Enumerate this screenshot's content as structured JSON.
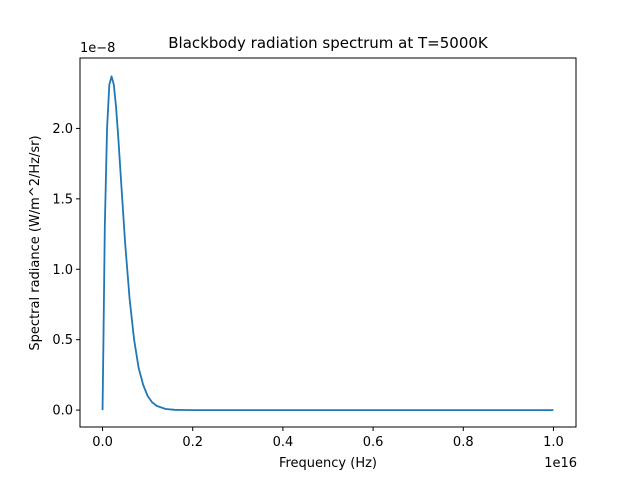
{
  "chart_data": {
    "type": "line",
    "title": "Blackbody radiation spectrum at T=5000K",
    "xlabel": "Frequency (Hz)",
    "ylabel": "Spectral radiance (W/m^2/Hz/sr)",
    "x_offset_label": "1e16",
    "y_offset_label": "1e−8",
    "xlim": [
      -0.05,
      1.05
    ],
    "ylim": [
      -0.12,
      2.5
    ],
    "x_ticks": [
      0.0,
      0.2,
      0.4,
      0.6,
      0.8,
      1.0
    ],
    "x_tick_labels": [
      "0.0",
      "0.2",
      "0.4",
      "0.6",
      "0.8",
      "1.0"
    ],
    "y_ticks": [
      0.0,
      0.5,
      1.0,
      1.5,
      2.0
    ],
    "y_tick_labels": [
      "0.0",
      "0.5",
      "1.0",
      "1.5",
      "2.0"
    ],
    "grid": false,
    "colors": {
      "line": "#1f77b4",
      "axes": "#000000",
      "background": "#ffffff"
    },
    "series": [
      {
        "x": [
          0.0,
          0.002,
          0.005,
          0.01,
          0.015,
          0.02,
          0.025,
          0.03,
          0.035,
          0.04,
          0.05,
          0.06,
          0.07,
          0.08,
          0.09,
          0.1,
          0.11,
          0.12,
          0.14,
          0.16,
          0.18,
          0.2,
          0.25,
          0.3,
          0.4,
          0.5,
          0.6,
          0.7,
          0.8,
          0.9,
          1.0
        ],
        "y": [
          0.0,
          0.5,
          1.3,
          2.0,
          2.31,
          2.37,
          2.31,
          2.15,
          1.93,
          1.68,
          1.19,
          0.79,
          0.5,
          0.3,
          0.18,
          0.1,
          0.055,
          0.03,
          0.008,
          0.002,
          0.0005,
          0.0001,
          0.0,
          0.0,
          0.0,
          0.0,
          0.0,
          0.0,
          0.0,
          0.0,
          0.0
        ]
      }
    ]
  }
}
